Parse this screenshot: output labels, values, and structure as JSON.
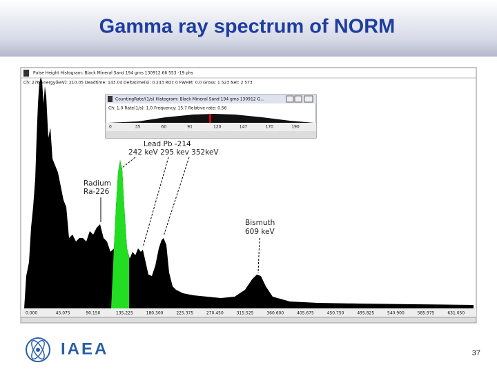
{
  "header": {
    "title": "Gamma ray spectrum of NORM"
  },
  "window": {
    "title": "Pulse Height Histogram: Black Mineral Sand 194 gms 130912 66 553 -19 phs",
    "status": "Ch: 276 Energy(keV): 210.05 Deadtime: 143.04 Deltatime(s): 0.243 ROI: 0 FWHM: 0.0 Gross: 1 523 Net: 2 573",
    "x_labels": [
      "0.000",
      "45.075",
      "90.150",
      "135.225",
      "180.300",
      "225.375",
      "270.450",
      "315.525",
      "360.600",
      "405.675",
      "450.750",
      "495.825",
      "540.900",
      "585.975",
      "631.050"
    ]
  },
  "inner_window": {
    "title": "CountingRate/(1/s) Histogram: Black Mineral Sand 194 gms 130912 G...",
    "status": "Ch: 1.0 Rate(1/s): 1.0 Frequency: 15.7 Relative rate: 0.56",
    "x_labels": [
      "0",
      "35",
      "60",
      "91",
      "120",
      "147",
      "170",
      "190"
    ]
  },
  "annotations": {
    "lead": "Lead Pb -214",
    "lead_energies": "242 keV 295 kev 352keV",
    "radium": "Radium",
    "radium_isotope": "Ra-226",
    "bismuth": "Bismuth",
    "bismuth_energy": "609 keV"
  },
  "footer": {
    "logo": "IAEA",
    "page": "37"
  }
}
